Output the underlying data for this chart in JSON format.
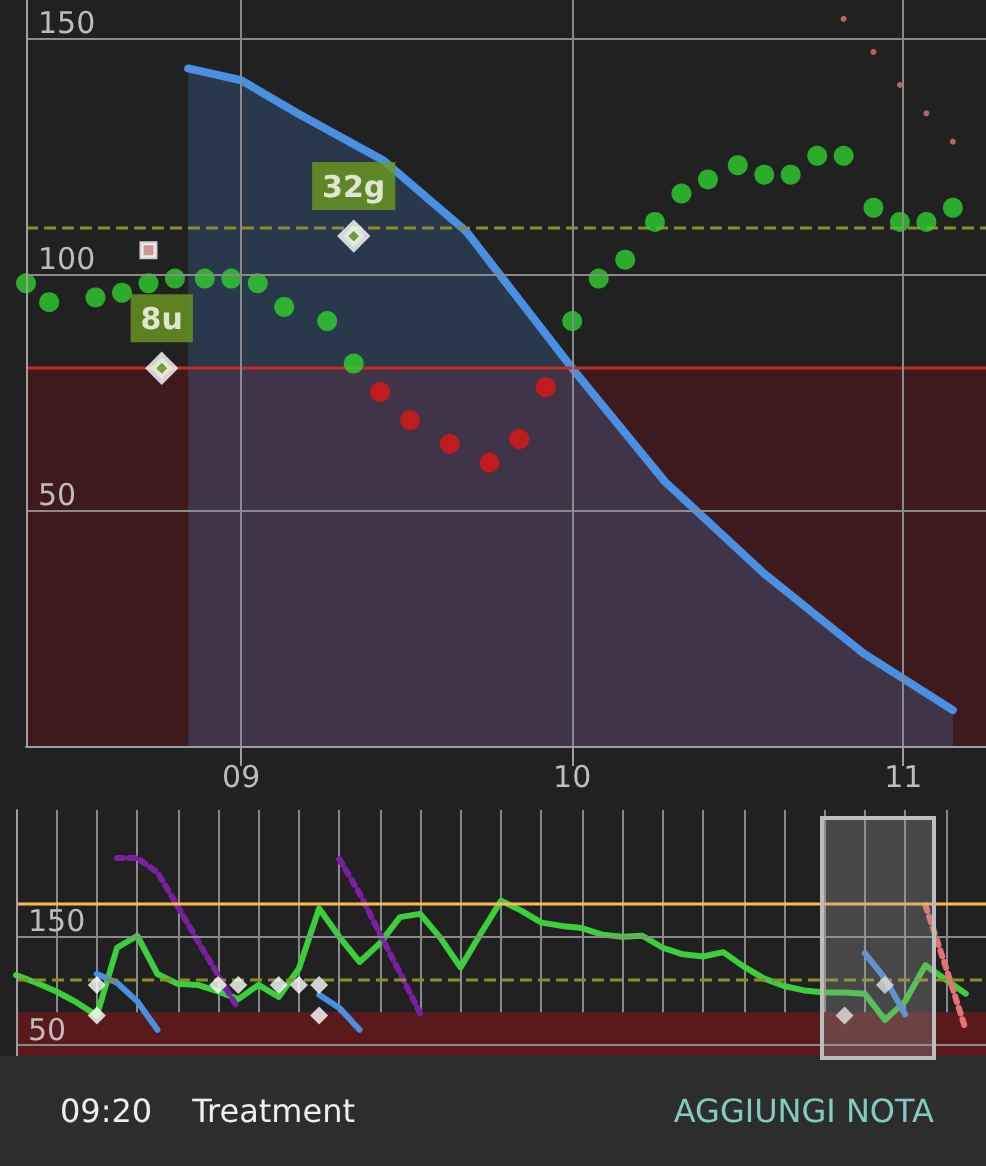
{
  "chart_data": [
    {
      "type": "scatter",
      "xlim": [
        8.35,
        11.25
      ],
      "xticks": [
        {
          "value": 9,
          "label": "09"
        },
        {
          "value": 10,
          "label": "10"
        },
        {
          "value": 11,
          "label": "11"
        }
      ],
      "ylim": [
        0,
        158
      ],
      "yticks": [
        50,
        100,
        150
      ],
      "grid": true,
      "bands": [
        {
          "axis": "y",
          "from": 0,
          "to": 80,
          "color": "#3e1a1d"
        }
      ],
      "ref_lines": [
        {
          "axis": "y",
          "value": 80,
          "color": "#c62828"
        },
        {
          "axis": "y",
          "value": 110,
          "color": "#8d8d26",
          "line_style": "dashed"
        }
      ],
      "annotations": [
        {
          "text": "32g",
          "x": 9.34,
          "y": 108
        },
        {
          "text": "8u",
          "x": 8.76,
          "y": 80
        }
      ],
      "series": [
        {
          "color": "#2ed12e",
          "marker": "circle",
          "x": [
            8.35,
            8.42,
            8.56,
            8.64,
            8.72,
            8.8,
            8.89,
            8.97,
            9.05,
            9.13,
            9.26,
            9.34,
            10.0,
            10.08,
            10.16,
            10.25,
            10.33,
            10.41,
            10.5,
            10.58,
            10.66,
            10.74,
            10.82,
            10.91,
            10.99,
            11.07,
            11.15
          ],
          "values": [
            98,
            94,
            95,
            96,
            98,
            99,
            99,
            99,
            98,
            93,
            90,
            81,
            90,
            99,
            103,
            111,
            117,
            120,
            123,
            121,
            121,
            125,
            125,
            114,
            111,
            111,
            114
          ]
        },
        {
          "color": "#e01515",
          "marker": "circle",
          "x": [
            9.42,
            9.51,
            9.63,
            9.75,
            9.84,
            9.92
          ],
          "values": [
            75,
            69,
            64,
            60,
            65,
            76
          ]
        },
        {
          "type": "area",
          "color": "#4a90e2",
          "x": [
            8.84,
            9.0,
            9.17,
            9.43,
            9.68,
            10.0,
            10.28,
            10.58,
            10.88,
            11.15
          ],
          "values": [
            143.5,
            141,
            134,
            124,
            109,
            80,
            56,
            36.5,
            19.6,
            7.6
          ]
        },
        {
          "color": "#e57373",
          "marker": "circle",
          "x": [
            10.82,
            10.91,
            10.99,
            11.07,
            11.15
          ],
          "values": [
            154,
            147,
            140,
            134,
            128
          ]
        },
        {
          "color": "#f5b5b5",
          "marker": "square",
          "x": [
            8.72
          ],
          "values": [
            105
          ]
        },
        {
          "color": "#7cb342",
          "marker": "diamond",
          "x": [
            8.76,
            9.34
          ],
          "values": [
            80,
            108
          ]
        }
      ]
    },
    {
      "type": "line",
      "categories": [
        null,
        null,
        null,
        null,
        null,
        null,
        null,
        null,
        null,
        null,
        null,
        null,
        null,
        null,
        null,
        null,
        null,
        null,
        null,
        null,
        null,
        null,
        null,
        null,
        null,
        null,
        null,
        null,
        null,
        null,
        null,
        null,
        null,
        null,
        null,
        null,
        null,
        null,
        null,
        null,
        null,
        null,
        null,
        null,
        null,
        null,
        null,
        null,
        null
      ],
      "ylim": [
        40,
        265
      ],
      "yticks": [
        50,
        150
      ],
      "tick_labels": "y",
      "grid": true,
      "bands": [
        {
          "axis": "y",
          "from": 40,
          "to": 80,
          "color": "#5a1a1c"
        }
      ],
      "ref_lines": [
        {
          "axis": "y",
          "value": 180,
          "color": "#ffb74d"
        },
        {
          "axis": "y",
          "value": 110,
          "color": "#8d8d26",
          "line_style": "dashed"
        }
      ],
      "annotations": [
        "09:20",
        "Treatment",
        "AGGIUNGI NOTA"
      ],
      "series": [
        {
          "color": "#3ccf3c",
          "line_style": "solid",
          "values": [
            114,
            107,
            99,
            89,
            77,
            139,
            150,
            115,
            106,
            105,
            99,
            92,
            105,
            94,
            120,
            175,
            149,
            126,
            143,
            167,
            170,
            148,
            121,
            152,
            182,
            173,
            162,
            159,
            157,
            151,
            149,
            150,
            139,
            133,
            131,
            135,
            122,
            111,
            104,
            100,
            98,
            98,
            97,
            73,
            90,
            123,
            110,
            97,
            null
          ]
        },
        {
          "color": "#7b1fa2",
          "line_style": "dotted",
          "values": [
            null,
            null,
            null,
            null,
            null,
            221,
            221,
            208,
            177,
            145,
            114,
            83,
            null,
            null,
            null,
            null,
            null,
            null,
            null,
            null,
            null,
            null,
            null,
            null,
            null,
            null,
            null,
            null,
            null,
            null,
            null,
            null,
            null,
            null,
            null,
            null,
            null,
            null,
            null,
            null,
            null,
            null,
            null,
            null,
            null,
            null,
            null,
            null,
            null
          ]
        },
        {
          "color": "#7b1fa2",
          "line_style": "dotted",
          "values": [
            null,
            null,
            null,
            null,
            null,
            null,
            null,
            null,
            null,
            null,
            null,
            null,
            null,
            null,
            null,
            null,
            220,
            189,
            152,
            116,
            79,
            null,
            null,
            null,
            null,
            null,
            null,
            null,
            null,
            null,
            null,
            null,
            null,
            null,
            null,
            null,
            null,
            null,
            null,
            null,
            null,
            null,
            null,
            null,
            null,
            null,
            null,
            null,
            null
          ]
        },
        {
          "color": "#4a90e2",
          "line_style": "solid",
          "values": [
            null,
            null,
            null,
            null,
            115,
            107,
            90,
            64,
            null,
            null,
            null,
            null,
            null,
            null,
            null,
            null,
            null,
            null,
            null,
            null,
            null,
            null,
            null,
            null,
            null,
            null,
            null,
            null,
            null,
            null,
            null,
            null,
            null,
            null,
            null,
            null,
            null,
            null,
            null,
            null,
            null,
            null,
            null,
            null,
            null,
            null,
            null,
            null,
            null
          ]
        },
        {
          "color": "#4a90e2",
          "line_style": "solid",
          "values": [
            null,
            null,
            null,
            null,
            null,
            null,
            null,
            null,
            null,
            null,
            null,
            null,
            null,
            null,
            null,
            96,
            84,
            64,
            null,
            null,
            null,
            null,
            null,
            null,
            null,
            null,
            null,
            null,
            null,
            null,
            null,
            null,
            null,
            null,
            null,
            null,
            null,
            null,
            null,
            null,
            null,
            null,
            null,
            null,
            null,
            null,
            null,
            null,
            null
          ]
        },
        {
          "color": "#4a90e2",
          "line_style": "solid",
          "values": [
            null,
            null,
            null,
            null,
            null,
            null,
            null,
            null,
            null,
            null,
            null,
            null,
            null,
            null,
            null,
            null,
            null,
            null,
            null,
            null,
            null,
            null,
            null,
            null,
            null,
            null,
            null,
            null,
            null,
            null,
            null,
            null,
            null,
            null,
            null,
            null,
            null,
            null,
            null,
            null,
            null,
            null,
            134,
            111,
            78,
            null,
            null,
            null,
            null
          ]
        },
        {
          "color": "#e57373",
          "line_style": "dotted",
          "values": [
            null,
            null,
            null,
            null,
            null,
            null,
            null,
            null,
            null,
            null,
            null,
            null,
            null,
            null,
            null,
            null,
            null,
            null,
            null,
            null,
            null,
            null,
            null,
            null,
            null,
            null,
            null,
            null,
            null,
            null,
            null,
            null,
            null,
            null,
            null,
            null,
            null,
            null,
            null,
            null,
            null,
            null,
            null,
            null,
            null,
            178,
            122,
            64,
            null
          ]
        },
        {
          "type": "scatter",
          "color": "#ffffff",
          "marker": "diamond",
          "values": [
            null,
            null,
            null,
            null,
            105,
            null,
            null,
            null,
            null,
            null,
            105,
            105,
            null,
            105,
            105,
            105,
            null,
            null,
            null,
            null,
            null,
            null,
            null,
            null,
            null,
            null,
            null,
            null,
            null,
            null,
            null,
            null,
            null,
            null,
            null,
            null,
            null,
            null,
            null,
            null,
            null,
            null,
            null,
            105,
            null,
            null,
            null,
            null,
            null
          ]
        },
        {
          "type": "scatter",
          "color": "#ffffff",
          "marker": "diamond",
          "values": [
            null,
            null,
            null,
            null,
            77,
            null,
            null,
            null,
            null,
            null,
            null,
            null,
            null,
            null,
            null,
            77,
            null,
            null,
            null,
            null,
            null,
            null,
            null,
            null,
            null,
            null,
            null,
            null,
            null,
            null,
            null,
            null,
            null,
            null,
            null,
            null,
            null,
            null,
            null,
            null,
            null,
            77,
            null,
            null,
            null,
            null,
            null,
            null,
            null
          ]
        }
      ]
    }
  ]
}
